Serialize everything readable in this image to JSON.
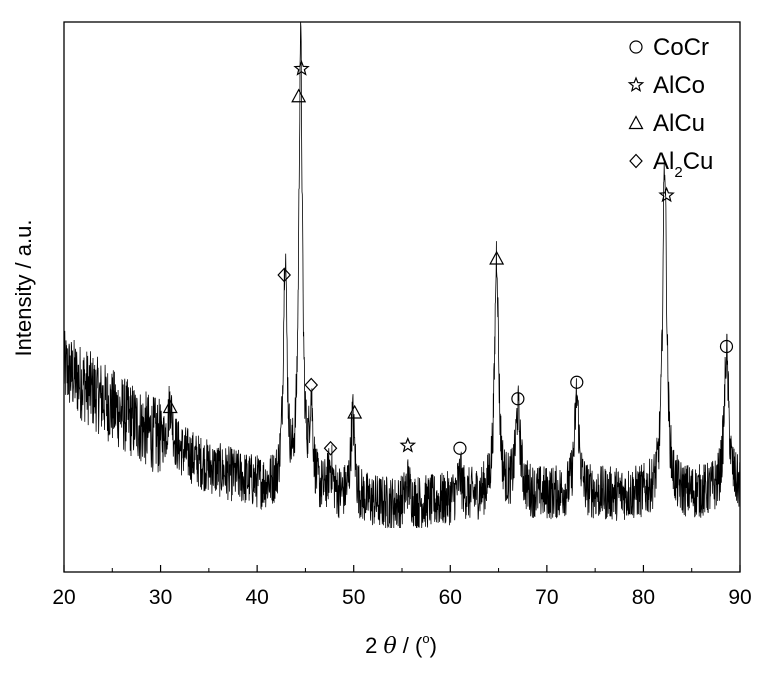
{
  "chart_data": {
    "type": "line",
    "xlabel_prefix": "2",
    "xlabel_theta": "θ",
    "xlabel_suffix": " / (",
    "xlabel_degree": "o",
    "xlabel_close": ")",
    "ylabel": "Intensity / a.u.",
    "xlim": [
      20,
      90
    ],
    "ylim": [
      0,
      100
    ],
    "x_ticks": [
      20,
      30,
      40,
      50,
      60,
      70,
      80,
      90
    ],
    "y_ticks_shown": false,
    "legend_position": "top-right",
    "legend": [
      {
        "symbol": "circle",
        "label": "CoCr"
      },
      {
        "symbol": "star",
        "label": "AlCo"
      },
      {
        "symbol": "triangle",
        "label": " AlCu"
      },
      {
        "symbol": "diamond",
        "label_main": "Al",
        "label_sub": "2",
        "label_tail": "Cu"
      }
    ],
    "series": [
      {
        "baseline": [
          [
            20,
            37
          ],
          [
            25,
            30
          ],
          [
            30,
            24
          ],
          [
            35,
            19
          ],
          [
            40,
            16
          ],
          [
            45,
            14
          ],
          [
            50,
            13
          ],
          [
            55,
            12
          ],
          [
            60,
            13
          ],
          [
            65,
            14
          ],
          [
            70,
            14
          ],
          [
            75,
            14
          ],
          [
            80,
            14
          ],
          [
            85,
            14
          ],
          [
            90,
            15
          ]
        ],
        "peaks": [
          {
            "x": 31.0,
            "height": 8,
            "width": 0.25
          },
          {
            "x": 42.9,
            "height": 43,
            "width": 0.22
          },
          {
            "x": 44.5,
            "height": 82,
            "width": 0.22
          },
          {
            "x": 45.6,
            "height": 15,
            "width": 0.22
          },
          {
            "x": 47.6,
            "height": 5,
            "width": 0.3
          },
          {
            "x": 49.9,
            "height": 15,
            "width": 0.25
          },
          {
            "x": 55.6,
            "height": 4,
            "width": 0.3
          },
          {
            "x": 61.0,
            "height": 4,
            "width": 0.3
          },
          {
            "x": 64.8,
            "height": 44,
            "width": 0.24
          },
          {
            "x": 67.0,
            "height": 15,
            "width": 0.3
          },
          {
            "x": 73.1,
            "height": 18,
            "width": 0.28
          },
          {
            "x": 82.2,
            "height": 61,
            "width": 0.25
          },
          {
            "x": 88.6,
            "height": 25,
            "width": 0.28
          }
        ],
        "noise_amplitude": 5
      }
    ],
    "annotations": [
      {
        "symbol": "star",
        "x": 44.6,
        "y": 91.5
      },
      {
        "symbol": "triangle",
        "x": 44.3,
        "y": 86.5
      },
      {
        "symbol": "diamond",
        "x": 42.8,
        "y": 54
      },
      {
        "symbol": "diamond",
        "x": 45.6,
        "y": 34
      },
      {
        "symbol": "diamond",
        "x": 47.6,
        "y": 22.5
      },
      {
        "symbol": "triangle",
        "x": 31.0,
        "y": 30
      },
      {
        "symbol": "triangle",
        "x": 50.1,
        "y": 29
      },
      {
        "symbol": "star",
        "x": 55.6,
        "y": 23
      },
      {
        "symbol": "circle",
        "x": 61.0,
        "y": 22.5
      },
      {
        "symbol": "triangle",
        "x": 64.8,
        "y": 57
      },
      {
        "symbol": "circle",
        "x": 67.0,
        "y": 31.5
      },
      {
        "symbol": "circle",
        "x": 73.1,
        "y": 34.5
      },
      {
        "symbol": "star",
        "x": 82.4,
        "y": 68.5
      },
      {
        "symbol": "circle",
        "x": 88.6,
        "y": 41
      }
    ]
  }
}
